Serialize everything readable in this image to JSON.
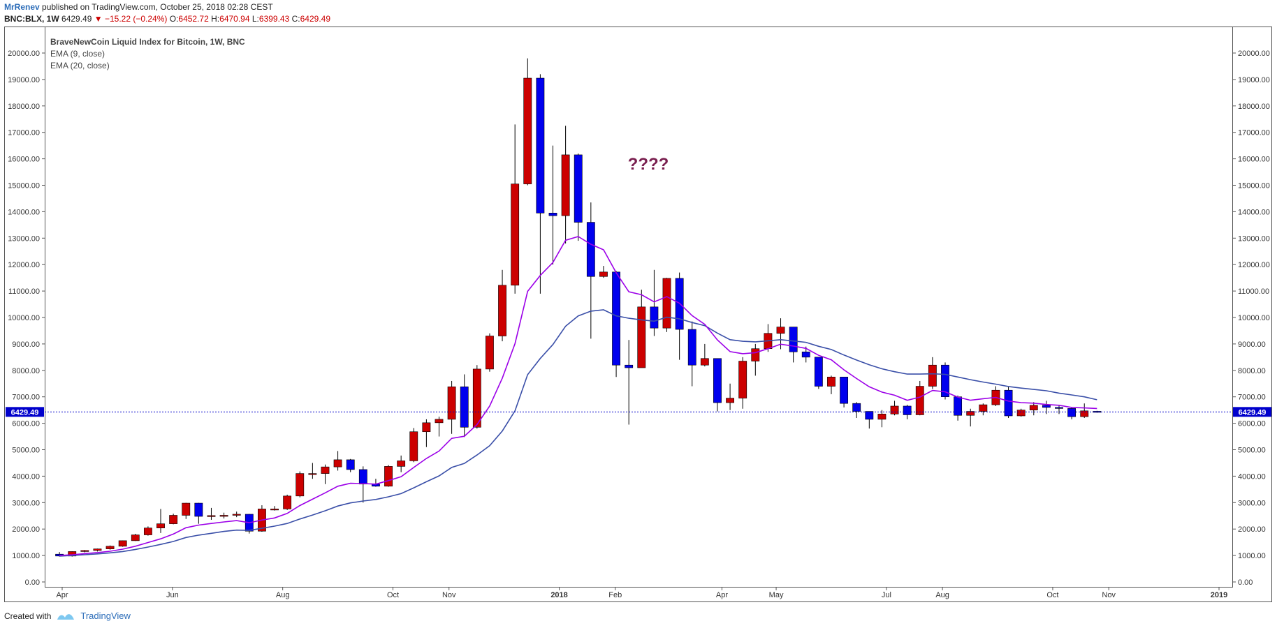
{
  "header": {
    "author": "MrRenev",
    "published": "published on TradingView.com, October 25, 2018 02:28 CEST"
  },
  "quote": {
    "symbol": "BNC:BLX, 1W",
    "last": "6429.49",
    "change": "−15.22 (−0.24%)",
    "o_label": "O:",
    "o": "6452.72",
    "h_label": "H:",
    "h": "6470.94",
    "l_label": "L:",
    "l": "6399.43",
    "c_label": "C:",
    "c": "6429.49"
  },
  "legend": {
    "title": "BraveNewCoin Liquid Index for Bitcoin, 1W, BNC",
    "ema9": "EMA (9, close)",
    "ema20": "EMA (20, close)"
  },
  "annotation": "????",
  "footer": {
    "created": "Created with",
    "brand": "TradingView"
  },
  "colors": {
    "up": "#cc0000",
    "down": "#0000ee",
    "wick": "#000000",
    "ema9": "#9c00e8",
    "ema20": "#3a4fa8",
    "price_line": "#0000cc",
    "annotation": "#7a1f4f"
  },
  "chart_data": {
    "type": "candlestick",
    "y_ticks": [
      "0.00",
      "1000.00",
      "2000.00",
      "3000.00",
      "4000.00",
      "5000.00",
      "6000.00",
      "7000.00",
      "8000.00",
      "9000.00",
      "10000.00",
      "11000.00",
      "12000.00",
      "13000.00",
      "14000.00",
      "15000.00",
      "16000.00",
      "17000.00",
      "18000.00",
      "19000.00",
      "20000.00"
    ],
    "ylim": [
      0,
      20000
    ],
    "x_ticks": [
      "Apr",
      "Jun",
      "Aug",
      "Oct",
      "Nov",
      "2018",
      "Feb",
      "Apr",
      "May",
      "Jul",
      "Aug",
      "Oct",
      "Nov",
      "2019"
    ],
    "x_tick_dates": [
      "2017-04-01",
      "2017-06-01",
      "2017-08-01",
      "2017-10-01",
      "2017-11-01",
      "2018-01-01",
      "2018-02-01",
      "2018-04-01",
      "2018-05-01",
      "2018-07-01",
      "2018-08-01",
      "2018-10-01",
      "2018-11-01",
      "2019-01-01"
    ],
    "first_candle_date": "2017-03-27",
    "interval": "1W",
    "candles": [
      [
        1050,
        1130,
        960,
        980
      ],
      [
        980,
        1160,
        960,
        1150
      ],
      [
        1150,
        1210,
        1120,
        1190
      ],
      [
        1190,
        1260,
        1150,
        1250
      ],
      [
        1250,
        1380,
        1220,
        1350
      ],
      [
        1350,
        1570,
        1330,
        1560
      ],
      [
        1560,
        1820,
        1550,
        1780
      ],
      [
        1780,
        2100,
        1750,
        2040
      ],
      [
        2040,
        2760,
        1850,
        2200
      ],
      [
        2200,
        2580,
        2180,
        2520
      ],
      [
        2520,
        2990,
        2380,
        2980
      ],
      [
        2980,
        2990,
        2200,
        2480
      ],
      [
        2480,
        2800,
        2350,
        2510
      ],
      [
        2510,
        2620,
        2400,
        2520
      ],
      [
        2520,
        2660,
        2450,
        2560
      ],
      [
        2560,
        2570,
        1830,
        1920
      ],
      [
        1920,
        2900,
        1900,
        2760
      ],
      [
        2760,
        2870,
        2700,
        2760
      ],
      [
        2760,
        3300,
        2720,
        3250
      ],
      [
        3250,
        4180,
        3200,
        4100
      ],
      [
        4100,
        4500,
        3900,
        4100
      ],
      [
        4100,
        4440,
        3700,
        4350
      ],
      [
        4350,
        4950,
        4210,
        4620
      ],
      [
        4620,
        4650,
        4150,
        4250
      ],
      [
        4250,
        4370,
        3000,
        3700
      ],
      [
        3700,
        3900,
        3600,
        3620
      ],
      [
        3620,
        4420,
        3600,
        4370
      ],
      [
        4370,
        4780,
        4150,
        4580
      ],
      [
        4580,
        5820,
        4530,
        5680
      ],
      [
        5680,
        6150,
        5100,
        6020
      ],
      [
        6020,
        6250,
        5500,
        6150
      ],
      [
        6150,
        7600,
        5600,
        7380
      ],
      [
        7380,
        7850,
        5480,
        5850
      ],
      [
        5850,
        8200,
        5800,
        8050
      ],
      [
        8050,
        9400,
        7950,
        9300
      ],
      [
        9300,
        11800,
        9100,
        11220
      ],
      [
        11220,
        17300,
        10900,
        15050
      ],
      [
        15050,
        19800,
        15000,
        19050
      ],
      [
        19050,
        19200,
        10900,
        13950
      ],
      [
        13950,
        16500,
        12000,
        13850
      ],
      [
        13850,
        17250,
        12800,
        16150
      ],
      [
        16150,
        16200,
        12900,
        13600
      ],
      [
        13600,
        14350,
        9200,
        11550
      ],
      [
        11550,
        11950,
        11500,
        11720
      ],
      [
        11720,
        11760,
        7750,
        8200
      ],
      [
        8200,
        9150,
        5950,
        8100
      ],
      [
        8100,
        11050,
        8100,
        10400
      ],
      [
        10400,
        11800,
        9300,
        9600
      ],
      [
        9600,
        11500,
        9450,
        11480
      ],
      [
        11480,
        11700,
        8400,
        9550
      ],
      [
        9550,
        9850,
        7400,
        8200
      ],
      [
        8200,
        9000,
        8150,
        8450
      ],
      [
        8450,
        8450,
        6450,
        6780
      ],
      [
        6780,
        7500,
        6500,
        6950
      ],
      [
        6950,
        8500,
        6550,
        8350
      ],
      [
        8350,
        9000,
        7800,
        8820
      ],
      [
        8820,
        9750,
        8700,
        9400
      ],
      [
        9400,
        9970,
        8800,
        9640
      ],
      [
        9640,
        9640,
        8300,
        8700
      ],
      [
        8700,
        8900,
        8300,
        8500
      ],
      [
        8500,
        8500,
        7300,
        7400
      ],
      [
        7400,
        7800,
        7100,
        7750
      ],
      [
        7750,
        7750,
        6600,
        6750
      ],
      [
        6750,
        6800,
        6200,
        6450
      ],
      [
        6450,
        6450,
        5800,
        6150
      ],
      [
        6150,
        6500,
        5850,
        6350
      ],
      [
        6350,
        6850,
        6300,
        6650
      ],
      [
        6650,
        6700,
        6150,
        6320
      ],
      [
        6320,
        7600,
        6300,
        7400
      ],
      [
        7400,
        8500,
        7300,
        8200
      ],
      [
        8200,
        8300,
        6900,
        7000
      ],
      [
        7000,
        7050,
        6100,
        6300
      ],
      [
        6300,
        6550,
        5880,
        6450
      ],
      [
        6450,
        6750,
        6300,
        6700
      ],
      [
        6700,
        7400,
        6650,
        7250
      ],
      [
        7250,
        7400,
        6200,
        6280
      ],
      [
        6280,
        6550,
        6250,
        6500
      ],
      [
        6500,
        6800,
        6300,
        6680
      ],
      [
        6680,
        6850,
        6350,
        6600
      ],
      [
        6600,
        6700,
        6350,
        6560
      ],
      [
        6560,
        6620,
        6150,
        6250
      ],
      [
        6250,
        6750,
        6200,
        6470
      ],
      [
        6452.72,
        6470.94,
        6399.43,
        6429.49
      ]
    ],
    "ema9": [
      1000,
      1030,
      1070,
      1110,
      1160,
      1240,
      1350,
      1490,
      1630,
      1810,
      2050,
      2150,
      2210,
      2270,
      2320,
      2240,
      2340,
      2420,
      2590,
      2890,
      3130,
      3370,
      3620,
      3730,
      3720,
      3700,
      3830,
      3980,
      4330,
      4670,
      4950,
      5430,
      5510,
      5950,
      6650,
      7710,
      9010,
      10990,
      11590,
      12080,
      12920,
      13060,
      12770,
      12560,
      11690,
      10970,
      10860,
      10590,
      10790,
      10540,
      10070,
      9740,
      9150,
      8710,
      8630,
      8670,
      8820,
      8990,
      8920,
      8830,
      8570,
      8400,
      8020,
      7690,
      7380,
      7180,
      7060,
      6870,
      6990,
      7240,
      7190,
      6990,
      6870,
      6930,
      6980,
      6840,
      6780,
      6760,
      6710,
      6680,
      6600,
      6580,
      6560
    ],
    "ema20": [
      980,
      1000,
      1030,
      1060,
      1100,
      1150,
      1230,
      1320,
      1420,
      1530,
      1680,
      1770,
      1840,
      1910,
      1960,
      1950,
      2030,
      2110,
      2210,
      2380,
      2530,
      2690,
      2870,
      2990,
      3060,
      3120,
      3220,
      3340,
      3560,
      3790,
      4010,
      4330,
      4480,
      4800,
      5150,
      5710,
      6470,
      7840,
      8450,
      8980,
      9670,
      10060,
      10240,
      10290,
      10060,
      9970,
      9910,
      9860,
      10010,
      9950,
      9810,
      9690,
      9410,
      9160,
      9100,
      9080,
      9120,
      9160,
      9110,
      9060,
      8910,
      8790,
      8580,
      8390,
      8210,
      8060,
      7950,
      7860,
      7860,
      7870,
      7850,
      7750,
      7650,
      7560,
      7480,
      7390,
      7330,
      7280,
      7230,
      7140,
      7070,
      7000,
      6890
    ]
  }
}
